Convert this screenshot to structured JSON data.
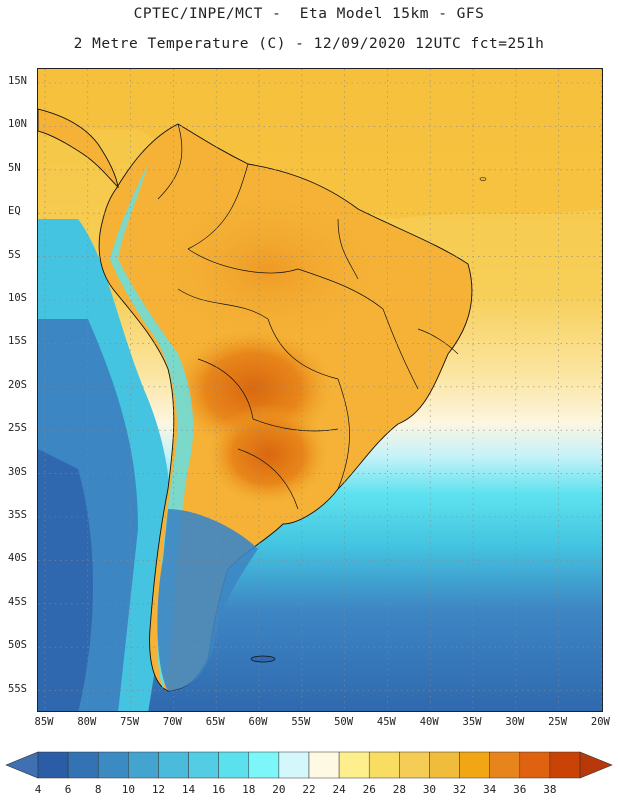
{
  "header": {
    "title_line1": "CPTEC/INPE/MCT -  Eta Model 15km - GFS",
    "title_line2": "2 Metre Temperature (C) - 12/09/2020 12UTC fct=251h"
  },
  "map": {
    "region": "South America",
    "lat_labels": [
      "15N",
      "10N",
      "5N",
      "EQ",
      "5S",
      "10S",
      "15S",
      "20S",
      "25S",
      "30S",
      "35S",
      "40S",
      "45S",
      "50S",
      "55S"
    ],
    "lon_labels": [
      "85W",
      "80W",
      "75W",
      "70W",
      "65W",
      "60W",
      "55W",
      "50W",
      "45W",
      "40W",
      "35W",
      "30W",
      "25W",
      "20W"
    ],
    "colors": {
      "ocean_cold": "#2f68ae",
      "ocean_mid": "#3d86c4",
      "ocean_cyan": "#44c4e0",
      "ocean_light": "#5ee2ef",
      "land_warm": "#f5b236",
      "land_hot": "#e8861a",
      "sea_yellow": "#f7cd55",
      "border": "#111111"
    }
  },
  "colorbar": {
    "labels": [
      "4",
      "6",
      "8",
      "10",
      "12",
      "14",
      "16",
      "18",
      "20",
      "22",
      "24",
      "26",
      "28",
      "30",
      "32",
      "34",
      "36",
      "38"
    ],
    "colors": [
      "#2a5da6",
      "#3373b4",
      "#3b8bc2",
      "#44a4d0",
      "#4bbbdc",
      "#52cde3",
      "#5ae1ed",
      "#7cf6f9",
      "#d4f7fb",
      "#fdf9e2",
      "#fdf08c",
      "#f8dd62",
      "#f5cc56",
      "#f0bc3c",
      "#f1a614",
      "#e8841c",
      "#df6210",
      "#c94206"
    ]
  }
}
